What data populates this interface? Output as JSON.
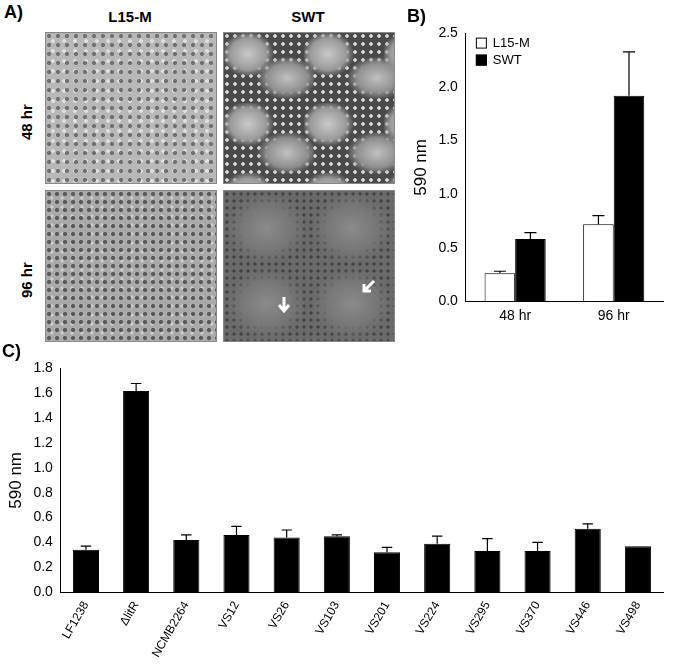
{
  "panel_a": {
    "label": "A)",
    "columns": [
      "L15-M",
      "SWT"
    ],
    "rows": [
      "48 hr",
      "96 hr"
    ]
  },
  "chart_data": [
    {
      "type": "bar",
      "title": "B)",
      "ylabel": "590 nm",
      "categories": [
        "48 hr",
        "96 hr"
      ],
      "series": [
        {
          "name": "L15-M",
          "color": "#ffffff",
          "values": [
            0.26,
            0.72
          ],
          "errors": [
            0.02,
            0.08
          ]
        },
        {
          "name": "SWT",
          "color": "#000000",
          "values": [
            0.58,
            1.92
          ],
          "errors": [
            0.06,
            0.41
          ]
        }
      ],
      "ylim": [
        0,
        2.5
      ],
      "yticks": [
        {
          "value": 0,
          "label": "0.0"
        },
        0.5,
        {
          "value": 1,
          "label": "1.0"
        },
        1.5,
        {
          "value": 2,
          "label": "2.0"
        },
        2.5
      ],
      "legend": "top-left",
      "grid": false
    },
    {
      "type": "bar",
      "title": "C)",
      "ylabel": "590 nm",
      "categories": [
        "LF1238",
        "ΔlitR",
        "NCMB2264",
        "VS12",
        "VS26",
        "VS103",
        "VS201",
        "VS224",
        "VS295",
        "VS370",
        "VS446",
        "VS498"
      ],
      "values": [
        0.34,
        1.62,
        0.42,
        0.46,
        0.44,
        0.45,
        0.32,
        0.39,
        0.33,
        0.33,
        0.51,
        0.37
      ],
      "errors": [
        0.03,
        0.06,
        0.04,
        0.07,
        0.06,
        0.01,
        0.04,
        0.06,
        0.1,
        0.07,
        0.04,
        0
      ],
      "color": "#000000",
      "ylim": [
        0,
        1.8
      ],
      "yticks": [
        {
          "value": 0,
          "label": "0.0"
        },
        0.2,
        0.4,
        0.6,
        0.8,
        {
          "value": 1,
          "label": "1.0"
        },
        1.2,
        1.4,
        1.6,
        1.8
      ],
      "grid": false
    }
  ]
}
